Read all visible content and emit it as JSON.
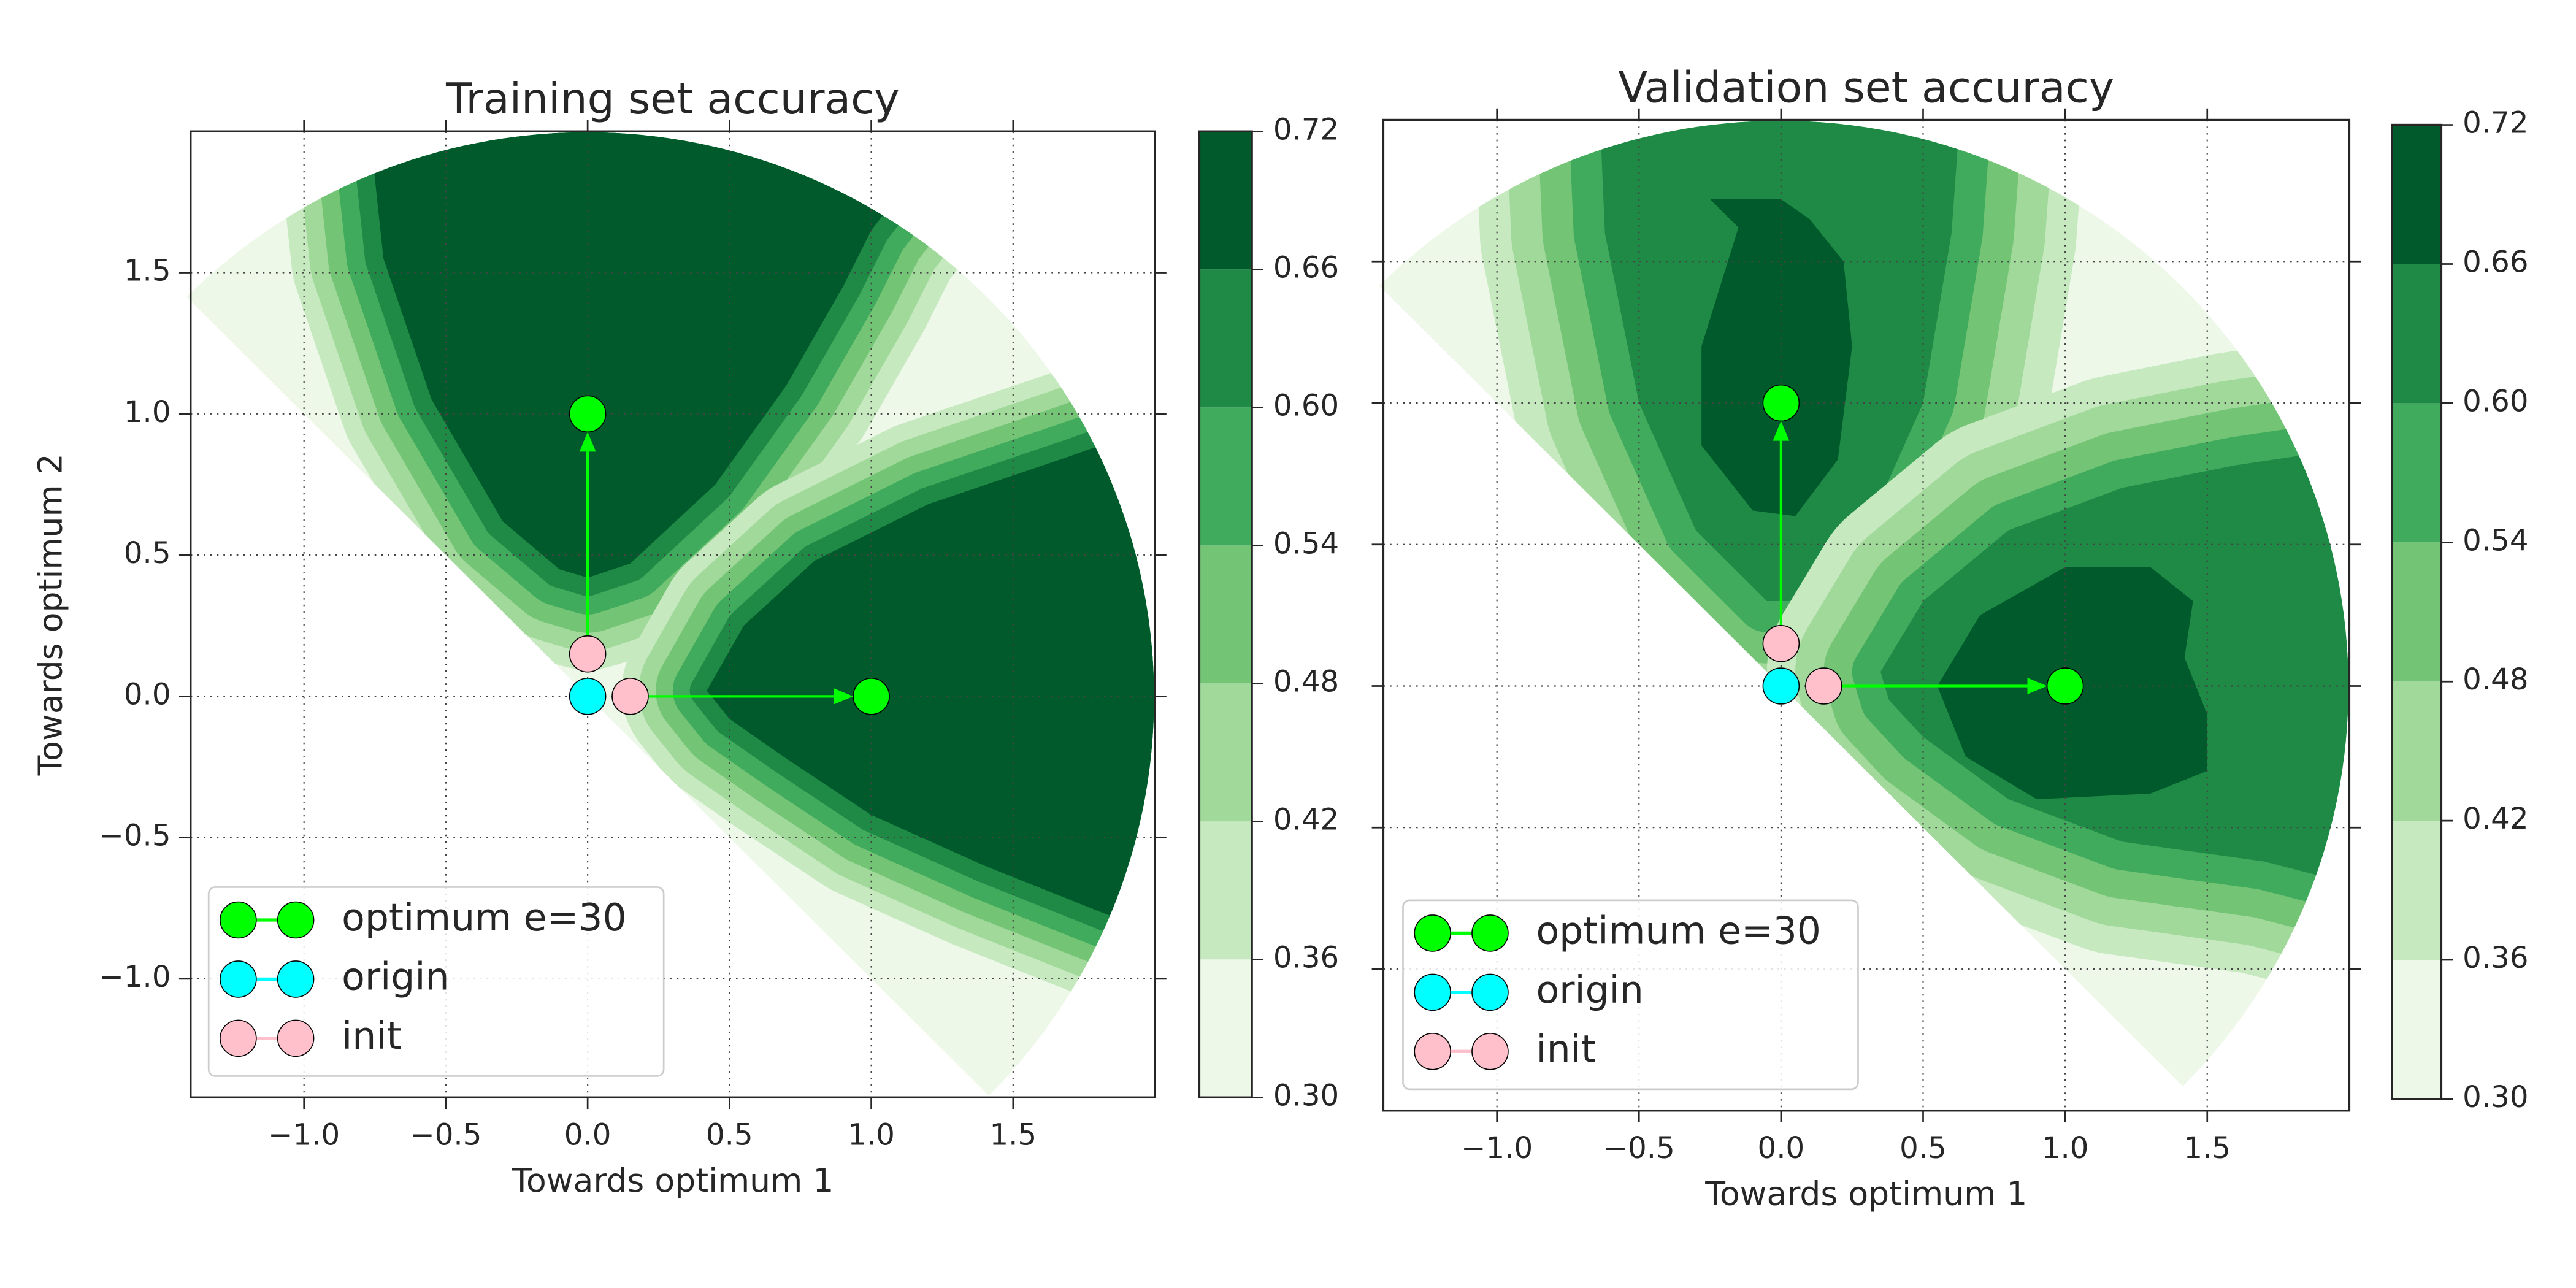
{
  "chart_data": [
    {
      "type": "contour",
      "title": "Training set accuracy",
      "xlabel": "Towards optimum 1",
      "ylabel": "Towards optimum 2",
      "xlim": [
        -1.4,
        2.0
      ],
      "ylim": [
        -1.42,
        2.0
      ],
      "xticks": [
        {
          "value": -1,
          "label": "−1.0"
        },
        {
          "value": -0.5,
          "label": "−0.5"
        },
        {
          "value": 0,
          "label": "0.0"
        },
        {
          "value": 0.5,
          "label": "0.5"
        },
        {
          "value": 1,
          "label": "1.0"
        },
        {
          "value": 1.5,
          "label": "1.5"
        }
      ],
      "yticks": [
        {
          "value": -1,
          "label": "−1.0"
        },
        {
          "value": -0.5,
          "label": "−0.5"
        },
        {
          "value": 0,
          "label": "0.0"
        },
        {
          "value": 0.5,
          "label": "0.5"
        },
        {
          "value": 1,
          "label": "1.0"
        },
        {
          "value": 1.5,
          "label": "1.5"
        }
      ],
      "show_ytick_labels": true,
      "grid": true,
      "levels": [
        {
          "value": 0.3,
          "label": "0.30"
        },
        {
          "value": 0.36,
          "label": "0.36"
        },
        {
          "value": 0.42,
          "label": "0.42"
        },
        {
          "value": 0.48,
          "label": "0.48"
        },
        {
          "value": 0.54,
          "label": "0.54"
        },
        {
          "value": 0.6,
          "label": "0.60"
        },
        {
          "value": 0.66,
          "label": "0.66"
        },
        {
          "value": 0.72,
          "label": "0.72"
        }
      ],
      "colors": [
        "#edf8e9",
        "#c7e9c0",
        "#a1d99b",
        "#74c476",
        "#41ab5d",
        "#1f8a45",
        "#005a2b"
      ],
      "series": [
        {
          "name": "optimum e=30",
          "color": "#00ff00",
          "x": [
            1,
            0
          ],
          "y": [
            0,
            1
          ]
        },
        {
          "name": "origin",
          "color": "#00ffff",
          "x": [
            0
          ],
          "y": [
            0
          ]
        },
        {
          "name": "init",
          "color": "#ffc0cb",
          "x": [
            0.15,
            0
          ],
          "y": [
            0,
            0.15
          ]
        }
      ],
      "arrows": true,
      "legend": "lower left"
    },
    {
      "type": "contour",
      "title": "Validation set accuracy",
      "xlabel": "Towards optimum 1",
      "xlim": [
        -1.4,
        2.0
      ],
      "ylim": [
        -1.5,
        2.0
      ],
      "xticks": [
        {
          "value": -1,
          "label": "−1.0"
        },
        {
          "value": -0.5,
          "label": "−0.5"
        },
        {
          "value": 0,
          "label": "0.0"
        },
        {
          "value": 0.5,
          "label": "0.5"
        },
        {
          "value": 1,
          "label": "1.0"
        },
        {
          "value": 1.5,
          "label": "1.5"
        }
      ],
      "yticks": [
        -1,
        -0.5,
        0,
        0.5,
        1,
        1.5
      ],
      "show_ytick_labels": false,
      "grid": true,
      "levels": [
        {
          "value": 0.3,
          "label": "0.30"
        },
        {
          "value": 0.36,
          "label": "0.36"
        },
        {
          "value": 0.42,
          "label": "0.42"
        },
        {
          "value": 0.48,
          "label": "0.48"
        },
        {
          "value": 0.54,
          "label": "0.54"
        },
        {
          "value": 0.6,
          "label": "0.60"
        },
        {
          "value": 0.66,
          "label": "0.66"
        },
        {
          "value": 0.72,
          "label": "0.72"
        }
      ],
      "colors": [
        "#edf8e9",
        "#c7e9c0",
        "#a1d99b",
        "#74c476",
        "#41ab5d",
        "#1f8a45",
        "#005a2b"
      ],
      "series": [
        {
          "name": "optimum e=30",
          "color": "#00ff00",
          "x": [
            1,
            0
          ],
          "y": [
            0,
            1
          ]
        },
        {
          "name": "origin",
          "color": "#00ffff",
          "x": [
            0
          ],
          "y": [
            0
          ]
        },
        {
          "name": "init",
          "color": "#ffc0cb",
          "x": [
            0.15,
            0
          ],
          "y": [
            0,
            0.15
          ]
        }
      ],
      "arrows": true,
      "legend": "lower left"
    }
  ]
}
